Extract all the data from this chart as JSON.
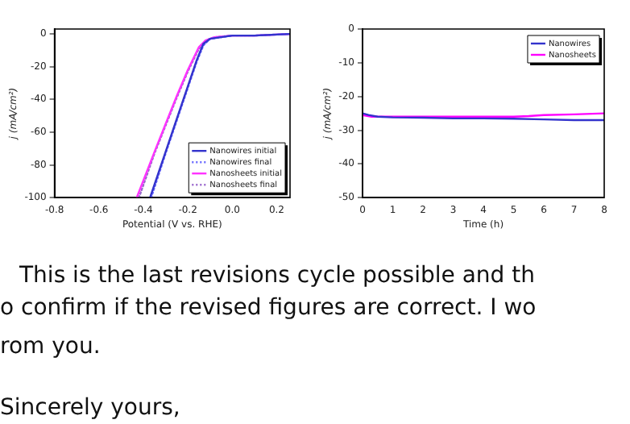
{
  "chart_data": [
    {
      "type": "line",
      "xlabel": "Potential (V vs. RHE)",
      "ylabel": "j (mA/cm²)",
      "xlim": [
        -0.8,
        0.26
      ],
      "xticks": [
        -0.8,
        -0.6,
        -0.4,
        -0.2,
        {
          "value": 0,
          "label": "0.0"
        },
        0.2
      ],
      "ylim": [
        -100,
        3
      ],
      "yticks": [
        -100,
        -80,
        -60,
        -40,
        -20,
        0
      ],
      "grid": false,
      "legend": "bottom right",
      "marker": "none",
      "series": [
        {
          "name": "Nanowires initial",
          "color": "#3333cc",
          "line_style": "solid",
          "x": [
            -0.37,
            -0.3,
            -0.25,
            -0.2,
            -0.16,
            -0.13,
            -0.1,
            -0.05,
            0,
            0.1,
            0.26
          ],
          "values": [
            -100,
            -72,
            -52,
            -32,
            -16,
            -6,
            -3,
            -2,
            -1,
            -1,
            0
          ]
        },
        {
          "name": "Nanowires final",
          "color": "#6666ff",
          "line_style": "dotted",
          "x": [
            -0.365,
            -0.3,
            -0.25,
            -0.2,
            -0.16,
            -0.13,
            -0.1,
            -0.05,
            0,
            0.1,
            0.26
          ],
          "values": [
            -100,
            -73,
            -53,
            -33,
            -17,
            -7,
            -3,
            -2,
            -1,
            -1,
            0
          ]
        },
        {
          "name": "Nanosheets initial",
          "color": "#ff33ff",
          "line_style": "solid",
          "x": [
            -0.43,
            -0.35,
            -0.3,
            -0.25,
            -0.2,
            -0.15,
            -0.12,
            -0.08,
            0,
            0.1,
            0.26
          ],
          "values": [
            -100,
            -72,
            -55,
            -38,
            -22,
            -8,
            -4,
            -2,
            -1,
            -1,
            0
          ]
        },
        {
          "name": "Nanosheets final",
          "color": "#9966cc",
          "line_style": "dotted",
          "x": [
            -0.42,
            -0.35,
            -0.3,
            -0.25,
            -0.2,
            -0.15,
            -0.12,
            -0.08,
            0,
            0.1,
            0.26
          ],
          "values": [
            -100,
            -73,
            -56,
            -39,
            -23,
            -9,
            -4,
            -2,
            -1,
            -1,
            0
          ]
        }
      ]
    },
    {
      "type": "line",
      "xlabel": "Time (h)",
      "ylabel": "j (mA/cm²)",
      "xlim": [
        0,
        8
      ],
      "xticks": [
        0,
        1,
        2,
        3,
        4,
        5,
        6,
        7,
        8
      ],
      "ylim": [
        -50,
        0
      ],
      "yticks": [
        -50,
        -40,
        -30,
        -20,
        -10,
        0
      ],
      "grid": false,
      "legend": "top right",
      "marker": "none",
      "series": [
        {
          "name": "Nanowires",
          "color": "#3333cc",
          "x": [
            0,
            0.2,
            0.5,
            1,
            2,
            3,
            4,
            5,
            6,
            7,
            8
          ],
          "values": [
            -25,
            -25.5,
            -26,
            -26.2,
            -26.3,
            -26.5,
            -26.5,
            -26.6,
            -26.8,
            -27,
            -27
          ]
        },
        {
          "name": "Nanosheets",
          "color": "#ff00ff",
          "x": [
            0,
            0.3,
            1,
            2,
            3,
            4,
            5,
            5.5,
            6,
            7,
            8
          ],
          "values": [
            -25.5,
            -26,
            -26,
            -26,
            -26,
            -26,
            -26,
            -25.8,
            -25.5,
            -25.3,
            -25
          ]
        }
      ]
    },
    {
      "type": "other",
      "annotations": [
        "This is the last revisions cycle possible and th",
        "o confirm if the revised figures are correct. I wo",
        "rom you.",
        "Sincerely yours,"
      ]
    }
  ]
}
